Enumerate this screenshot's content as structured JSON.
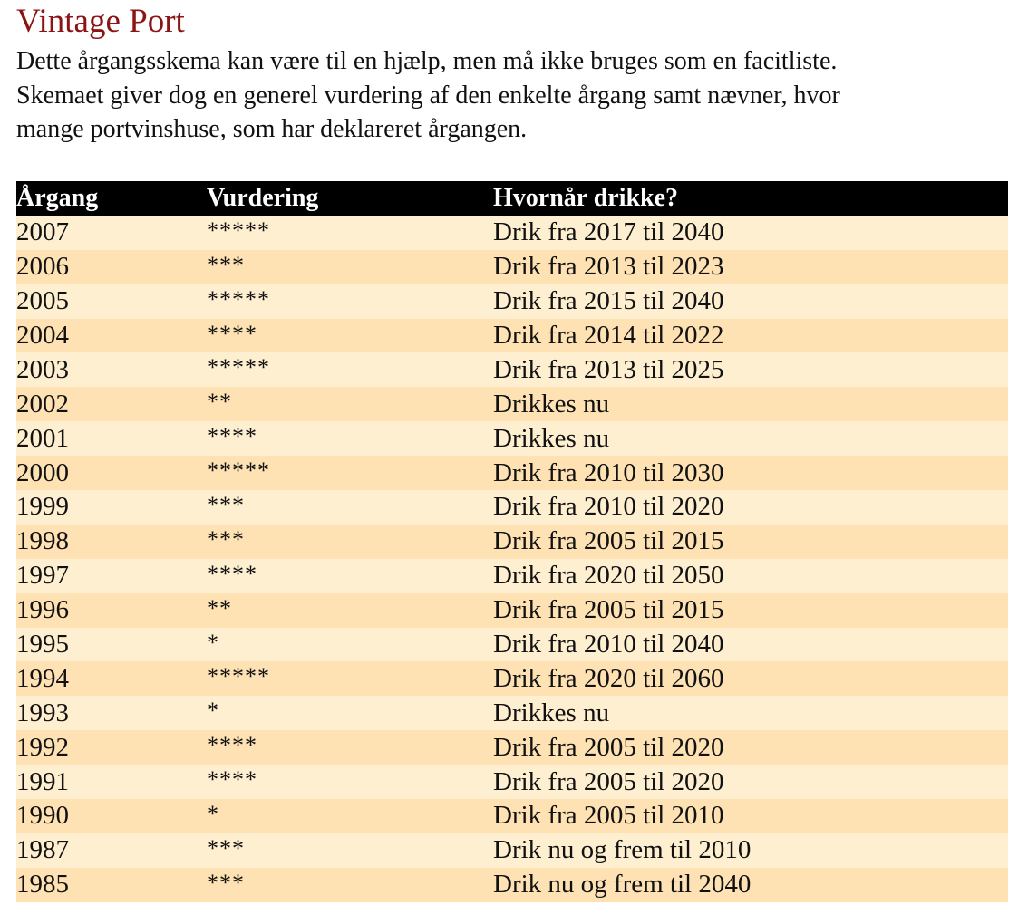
{
  "header": {
    "title": "Vintage Port",
    "lines": [
      "Dette årgangsskema kan være til en hjælp, men må ikke bruges som en facitliste.",
      "Skemaet giver dog en generel vurdering af den enkelte årgang samt nævner, hvor",
      "mange portvinshuse, som har deklareret årgangen."
    ]
  },
  "table": {
    "columns": [
      "Årgang",
      "Vurdering",
      "Hvornår drikke?"
    ],
    "rows": [
      [
        "2007",
        "*****",
        "Drik fra 2017 til 2040"
      ],
      [
        "2006",
        "***",
        "Drik fra 2013 til 2023"
      ],
      [
        "2005",
        "*****",
        "Drik fra 2015 til 2040"
      ],
      [
        "2004",
        "****",
        "Drik fra 2014 til 2022"
      ],
      [
        "2003",
        "*****",
        "Drik fra 2013 til 2025"
      ],
      [
        "2002",
        "**",
        "Drikkes nu"
      ],
      [
        "2001",
        "****",
        "Drikkes nu"
      ],
      [
        "2000",
        "*****",
        "Drik fra 2010 til 2030"
      ],
      [
        "1999",
        "***",
        "Drik fra 2010 til 2020"
      ],
      [
        "1998",
        "***",
        "Drik fra 2005 til 2015"
      ],
      [
        "1997",
        "****",
        "Drik fra 2020 til 2050"
      ],
      [
        "1996",
        "**",
        "Drik fra 2005 til 2015"
      ],
      [
        "1995",
        "*",
        "Drik fra 2010 til 2040"
      ],
      [
        "1994",
        "*****",
        "Drik fra 2020 til 2060"
      ],
      [
        "1993",
        "*",
        "Drikkes nu"
      ],
      [
        "1992",
        "****",
        "Drik fra 2005 til 2020"
      ],
      [
        "1991",
        "****",
        "Drik fra 2005 til 2020"
      ],
      [
        "1990",
        "*",
        "Drik fra 2005 til 2010"
      ],
      [
        "1987",
        "***",
        "Drik nu og frem til 2010"
      ],
      [
        "1985",
        "***",
        "Drik nu og frem til 2040"
      ]
    ]
  }
}
